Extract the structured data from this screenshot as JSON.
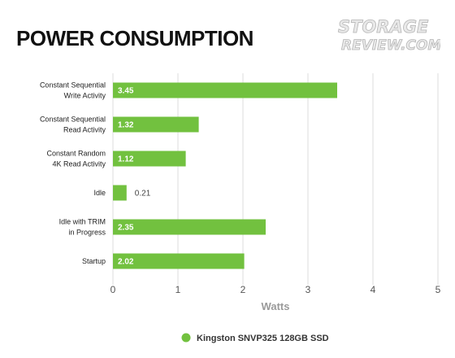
{
  "logo": {
    "line1": "STORAGE",
    "line2": "REVIEW.COM"
  },
  "chart_data": {
    "type": "bar",
    "orientation": "horizontal",
    "title": "POWER CONSUMPTION",
    "xlabel": "Watts",
    "xlim": [
      0,
      5
    ],
    "xticks": [
      0,
      1,
      2,
      3,
      4,
      5
    ],
    "grid": true,
    "legend_position": "bottom",
    "categories": [
      [
        "Constant Sequential",
        "Write Activity"
      ],
      [
        "Constant Sequential",
        "Read Activity"
      ],
      [
        "Constant Random",
        "4K Read Activity"
      ],
      [
        "Idle"
      ],
      [
        "Idle with TRIM",
        "in Progress"
      ],
      [
        "Startup"
      ]
    ],
    "series": [
      {
        "name": "Kingston SNVP325 128GB SSD",
        "color": "#72c13f",
        "values": [
          3.45,
          1.32,
          1.12,
          0.21,
          2.35,
          2.02
        ]
      }
    ]
  }
}
